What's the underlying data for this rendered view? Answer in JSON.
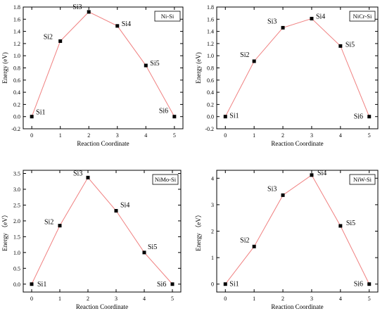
{
  "chart_data": [
    {
      "type": "line",
      "title": "Ni-Si",
      "xlabel": "Reaction Coordinate",
      "ylabel": "Energy (eV)",
      "x": [
        0,
        1,
        2,
        3,
        4,
        5
      ],
      "y": [
        0.0,
        1.24,
        1.72,
        1.49,
        0.84,
        0.0
      ],
      "point_labels": [
        "Si1",
        "Si2",
        "Si3",
        "Si4",
        "Si5",
        "Si6"
      ],
      "xlim": [
        -0.3,
        5.3
      ],
      "ylim": [
        -0.2,
        1.8
      ],
      "xticks": [
        0,
        1,
        2,
        3,
        4,
        5
      ],
      "yticks": [
        -0.2,
        0.0,
        0.2,
        0.4,
        0.6,
        0.8,
        1.0,
        1.2,
        1.4,
        1.6,
        1.8
      ],
      "ytick_labels": [
        "-0.2",
        "0.0",
        "0.2",
        "0.4",
        "0.6",
        "0.8",
        "1.0",
        "1.2",
        "1.4",
        "1.6",
        "1.8"
      ],
      "legend": "top-right",
      "line_color": "#f08080",
      "marker_color": "#000000"
    },
    {
      "type": "line",
      "title": "NiCr-Si",
      "xlabel": "Reaction Coordinate",
      "ylabel": "Energy (eV)",
      "x": [
        0,
        1,
        2,
        3,
        4,
        5
      ],
      "y": [
        0.0,
        0.91,
        1.46,
        1.61,
        1.16,
        0.0
      ],
      "point_labels": [
        "Si1",
        "Si2",
        "Si3",
        "Si4",
        "Si5",
        "Si6"
      ],
      "xlim": [
        -0.3,
        5.3
      ],
      "ylim": [
        -0.2,
        1.8
      ],
      "xticks": [
        0,
        1,
        2,
        3,
        4,
        5
      ],
      "yticks": [
        -0.2,
        0.0,
        0.2,
        0.4,
        0.6,
        0.8,
        1.0,
        1.2,
        1.4,
        1.6,
        1.8
      ],
      "ytick_labels": [
        "-0.2",
        "0.0",
        "0.2",
        "0.4",
        "0.6",
        "0.8",
        "1.0",
        "1.2",
        "1.4",
        "1.6",
        "1.8"
      ],
      "legend": "top-right",
      "line_color": "#f08080",
      "marker_color": "#000000"
    },
    {
      "type": "line",
      "title": "NiMo-Si",
      "xlabel": "Reaction Coordinate",
      "ylabel": "Energy （eV）",
      "x": [
        0,
        1,
        2,
        3,
        4,
        5
      ],
      "y": [
        0.0,
        1.85,
        3.37,
        2.32,
        1.0,
        0.0
      ],
      "point_labels": [
        "Si1",
        "Si2",
        "Si3",
        "Si4",
        "Si5",
        "Si6"
      ],
      "xlim": [
        -0.3,
        5.3
      ],
      "ylim": [
        -0.25,
        3.6
      ],
      "xticks": [
        0,
        1,
        2,
        3,
        4,
        5
      ],
      "yticks": [
        0.0,
        0.5,
        1.0,
        1.5,
        2.0,
        2.5,
        3.0,
        3.5
      ],
      "ytick_labels": [
        "0.0",
        "0.5",
        "1.0",
        "1.5",
        "2.0",
        "2.5",
        "3.0",
        "3.5"
      ],
      "legend": "top-right",
      "line_color": "#f08080",
      "marker_color": "#000000"
    },
    {
      "type": "line",
      "title": "NiW-Si",
      "xlabel": "Reaction Coordinate",
      "ylabel": "Energy （eV）",
      "x": [
        0,
        1,
        2,
        3,
        4,
        5
      ],
      "y": [
        0.0,
        1.42,
        3.36,
        4.12,
        2.2,
        0.0
      ],
      "point_labels": [
        "Si1",
        "Si2",
        "Si3",
        "Si4",
        "Si5",
        "Si6"
      ],
      "xlim": [
        -0.3,
        5.3
      ],
      "ylim": [
        -0.3,
        4.3
      ],
      "xticks": [
        0,
        1,
        2,
        3,
        4,
        5
      ],
      "yticks": [
        0,
        1,
        2,
        3,
        4
      ],
      "ytick_labels": [
        "0",
        "1",
        "2",
        "3",
        "4"
      ],
      "legend": "top-right",
      "line_color": "#f08080",
      "marker_color": "#000000"
    }
  ]
}
